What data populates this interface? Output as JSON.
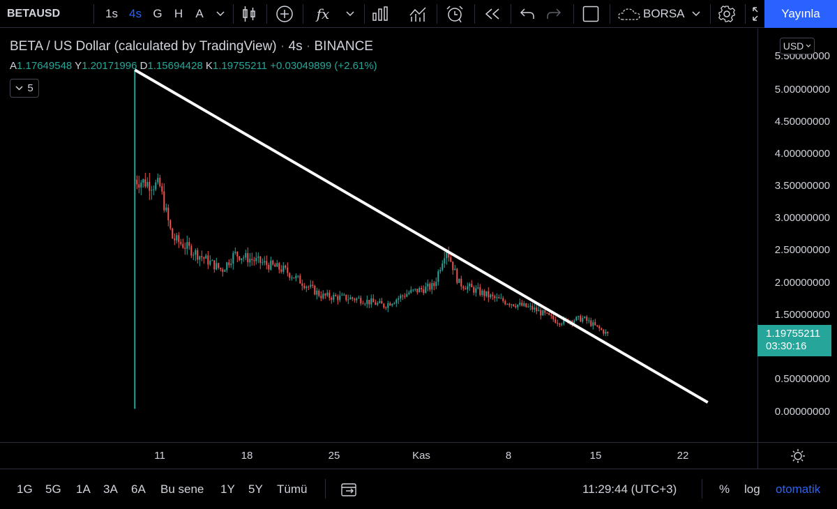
{
  "toolbar": {
    "symbol": "BETAUSD",
    "intervals": [
      "1s",
      "4s",
      "G",
      "H",
      "A"
    ],
    "active_interval": "4s",
    "indicator_symbol": "fx",
    "exchange_label": "BORSA",
    "publish_label": "Yayınla"
  },
  "legend": {
    "title": "BETA / US Dollar (calculated by TradingView)",
    "dot": "·",
    "interval": "4s",
    "exchange": "BINANCE",
    "open_key": "A",
    "open": "1.17649548",
    "high_key": "Y",
    "high": "1.20171996",
    "low_key": "D",
    "low": "1.15694428",
    "close_key": "K",
    "close": "1.19755211",
    "change": "+0.03049899 (+2.61%)",
    "collapse_count": "5"
  },
  "price_axis": {
    "currency": "USD",
    "labels": [
      "5.50000000",
      "5.00000000",
      "4.50000000",
      "4.00000000",
      "3.50000000",
      "3.00000000",
      "2.50000000",
      "2.00000000",
      "1.50000000",
      "0.50000000",
      "0.00000000"
    ],
    "current_price": "1.19755211",
    "countdown": "03:30:16",
    "current_price_color": "#26a69a"
  },
  "time_axis": {
    "labels": [
      "11",
      "18",
      "25",
      "Kas",
      "8",
      "15",
      "22"
    ]
  },
  "chart_data": {
    "type": "candlestick",
    "symbol": "BETAUSD",
    "interval": "4s",
    "ylim": [
      0,
      5.5
    ],
    "grid": false,
    "up_color": "#26a69a",
    "down_color": "#ef5350",
    "x_ticks": [
      "11",
      "18",
      "25",
      "Kas",
      "8",
      "15",
      "22"
    ],
    "approx_close_path": [
      {
        "x": "Oct 9",
        "close": 3.6
      },
      {
        "x": "Oct 11",
        "close": 3.5
      },
      {
        "x": "Oct 12",
        "close": 2.7
      },
      {
        "x": "Oct 14",
        "close": 2.45
      },
      {
        "x": "Oct 16",
        "close": 2.2
      },
      {
        "x": "Oct 17",
        "close": 2.45
      },
      {
        "x": "Oct 21",
        "close": 2.2
      },
      {
        "x": "Oct 24",
        "close": 1.8
      },
      {
        "x": "Oct 27",
        "close": 1.75
      },
      {
        "x": "Oct 29",
        "close": 1.65
      },
      {
        "x": "Oct 31",
        "close": 1.85
      },
      {
        "x": "Nov 2",
        "close": 1.95
      },
      {
        "x": "Nov 3",
        "close": 2.55
      },
      {
        "x": "Nov 4",
        "close": 2.0
      },
      {
        "x": "Nov 7",
        "close": 1.75
      },
      {
        "x": "Nov 10",
        "close": 1.6
      },
      {
        "x": "Nov 12",
        "close": 1.4
      },
      {
        "x": "Nov 14",
        "close": 1.45
      },
      {
        "x": "Nov 16",
        "close": 1.2
      }
    ],
    "extremes": {
      "first_candle_high": 5.3,
      "first_candle_low": 0.05
    },
    "trendline": {
      "from": {
        "x": "Oct 9",
        "y": 5.3
      },
      "to": {
        "x": "Nov 24",
        "y": 0.15
      },
      "color": "#ffffff"
    }
  },
  "bottombar": {
    "ranges": [
      "1G",
      "5G",
      "1A",
      "3A",
      "6A",
      "Bu sene",
      "1Y",
      "5Y",
      "Tümü"
    ],
    "clock": "11:29:44 (UTC+3)",
    "percent_label": "%",
    "log_label": "log",
    "auto_label": "otomatik"
  },
  "colors": {
    "background": "#000000",
    "accent": "#2962ff",
    "up": "#26a69a",
    "down": "#ef5350",
    "text": "#d1d4dc",
    "border": "#2a2e39"
  }
}
